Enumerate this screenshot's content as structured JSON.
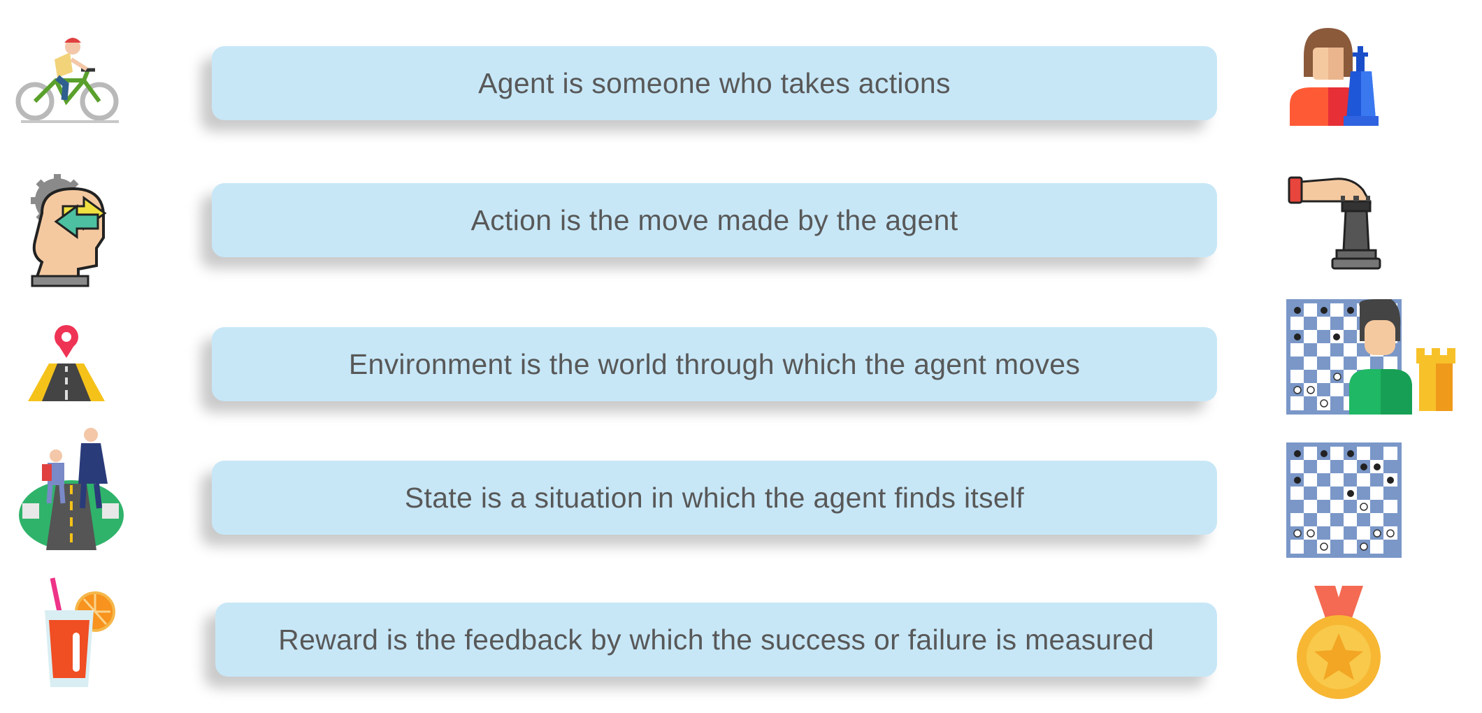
{
  "rows": [
    {
      "text": "Agent is someone who takes actions",
      "left_icon": "cyclist-icon",
      "right_icon": "chess-player-icon"
    },
    {
      "text": "Action is the move made by the agent",
      "left_icon": "head-gear-arrows-icon",
      "right_icon": "hand-moving-rook-icon"
    },
    {
      "text": "Environment is the world through which the agent moves",
      "left_icon": "road-with-pin-icon",
      "right_icon": "chessboard-with-player-icon"
    },
    {
      "text": "State is a situation in which the agent finds itself",
      "left_icon": "crosswalk-family-icon",
      "right_icon": "chessboard-position-icon"
    },
    {
      "text": "Reward is the feedback by which the success or failure is measured",
      "left_icon": "juice-glass-icon",
      "right_icon": "medal-icon"
    }
  ],
  "colors": {
    "bar": "#c7e7f7",
    "text": "#585858"
  }
}
